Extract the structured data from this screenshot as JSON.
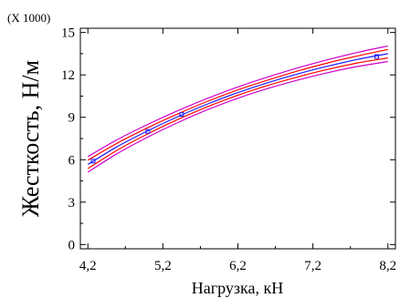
{
  "chart_data": {
    "type": "line",
    "title": "",
    "xlabel": "Нагрузка, кН",
    "ylabel": "Жесткость, Н/м",
    "y_multiplier": "(X 1000)",
    "xlim": [
      4.1,
      8.3
    ],
    "ylim": [
      -0.3,
      15.3
    ],
    "x_ticks": [
      4.2,
      5.2,
      6.2,
      7.2,
      8.2
    ],
    "x_tick_labels": [
      "4,2",
      "5,2",
      "6,2",
      "7,2",
      "8,2"
    ],
    "y_ticks": [
      0,
      3,
      6,
      9,
      12,
      15
    ],
    "y_tick_labels": [
      "0",
      "3",
      "6",
      "9",
      "12",
      "15"
    ],
    "grid": false,
    "legend": "none",
    "colors": {
      "fit": "#1a1aff",
      "confidence": "#ff0000",
      "prediction": "#cc00cc",
      "points": "#1a1aff"
    },
    "points": [
      {
        "x": 4.27,
        "y": 5.9
      },
      {
        "x": 5.0,
        "y": 8.0
      },
      {
        "x": 5.45,
        "y": 9.2
      },
      {
        "x": 8.05,
        "y": 13.3
      }
    ],
    "series": [
      {
        "role": "fit",
        "x": [
          4.2,
          4.6,
          5.0,
          5.4,
          5.8,
          6.2,
          6.6,
          7.0,
          7.4,
          7.8,
          8.2
        ],
        "y": [
          5.67,
          6.95,
          8.05,
          9.05,
          9.95,
          10.75,
          11.45,
          12.07,
          12.62,
          13.1,
          13.5
        ]
      },
      {
        "role": "conf-upper",
        "x": [
          4.2,
          4.6,
          5.0,
          5.4,
          5.8,
          6.2,
          6.6,
          7.0,
          7.4,
          7.8,
          8.2
        ],
        "y": [
          5.97,
          7.2,
          8.27,
          9.25,
          10.14,
          10.94,
          11.64,
          12.28,
          12.85,
          13.35,
          13.8
        ]
      },
      {
        "role": "conf-lower",
        "x": [
          4.2,
          4.6,
          5.0,
          5.4,
          5.8,
          6.2,
          6.6,
          7.0,
          7.4,
          7.8,
          8.2
        ],
        "y": [
          5.37,
          6.7,
          7.83,
          8.85,
          9.76,
          10.56,
          11.26,
          11.86,
          12.39,
          12.85,
          13.2
        ]
      },
      {
        "role": "pred-upper",
        "x": [
          4.2,
          4.6,
          5.0,
          5.4,
          5.8,
          6.2,
          6.6,
          7.0,
          7.4,
          7.8,
          8.2
        ],
        "y": [
          6.22,
          7.44,
          8.5,
          9.47,
          10.35,
          11.15,
          11.86,
          12.5,
          13.08,
          13.6,
          14.05
        ]
      },
      {
        "role": "pred-lower",
        "x": [
          4.2,
          4.6,
          5.0,
          5.4,
          5.8,
          6.2,
          6.6,
          7.0,
          7.4,
          7.8,
          8.2
        ],
        "y": [
          5.12,
          6.46,
          7.6,
          8.63,
          9.55,
          10.35,
          11.04,
          11.64,
          12.16,
          12.6,
          12.95
        ]
      }
    ]
  }
}
